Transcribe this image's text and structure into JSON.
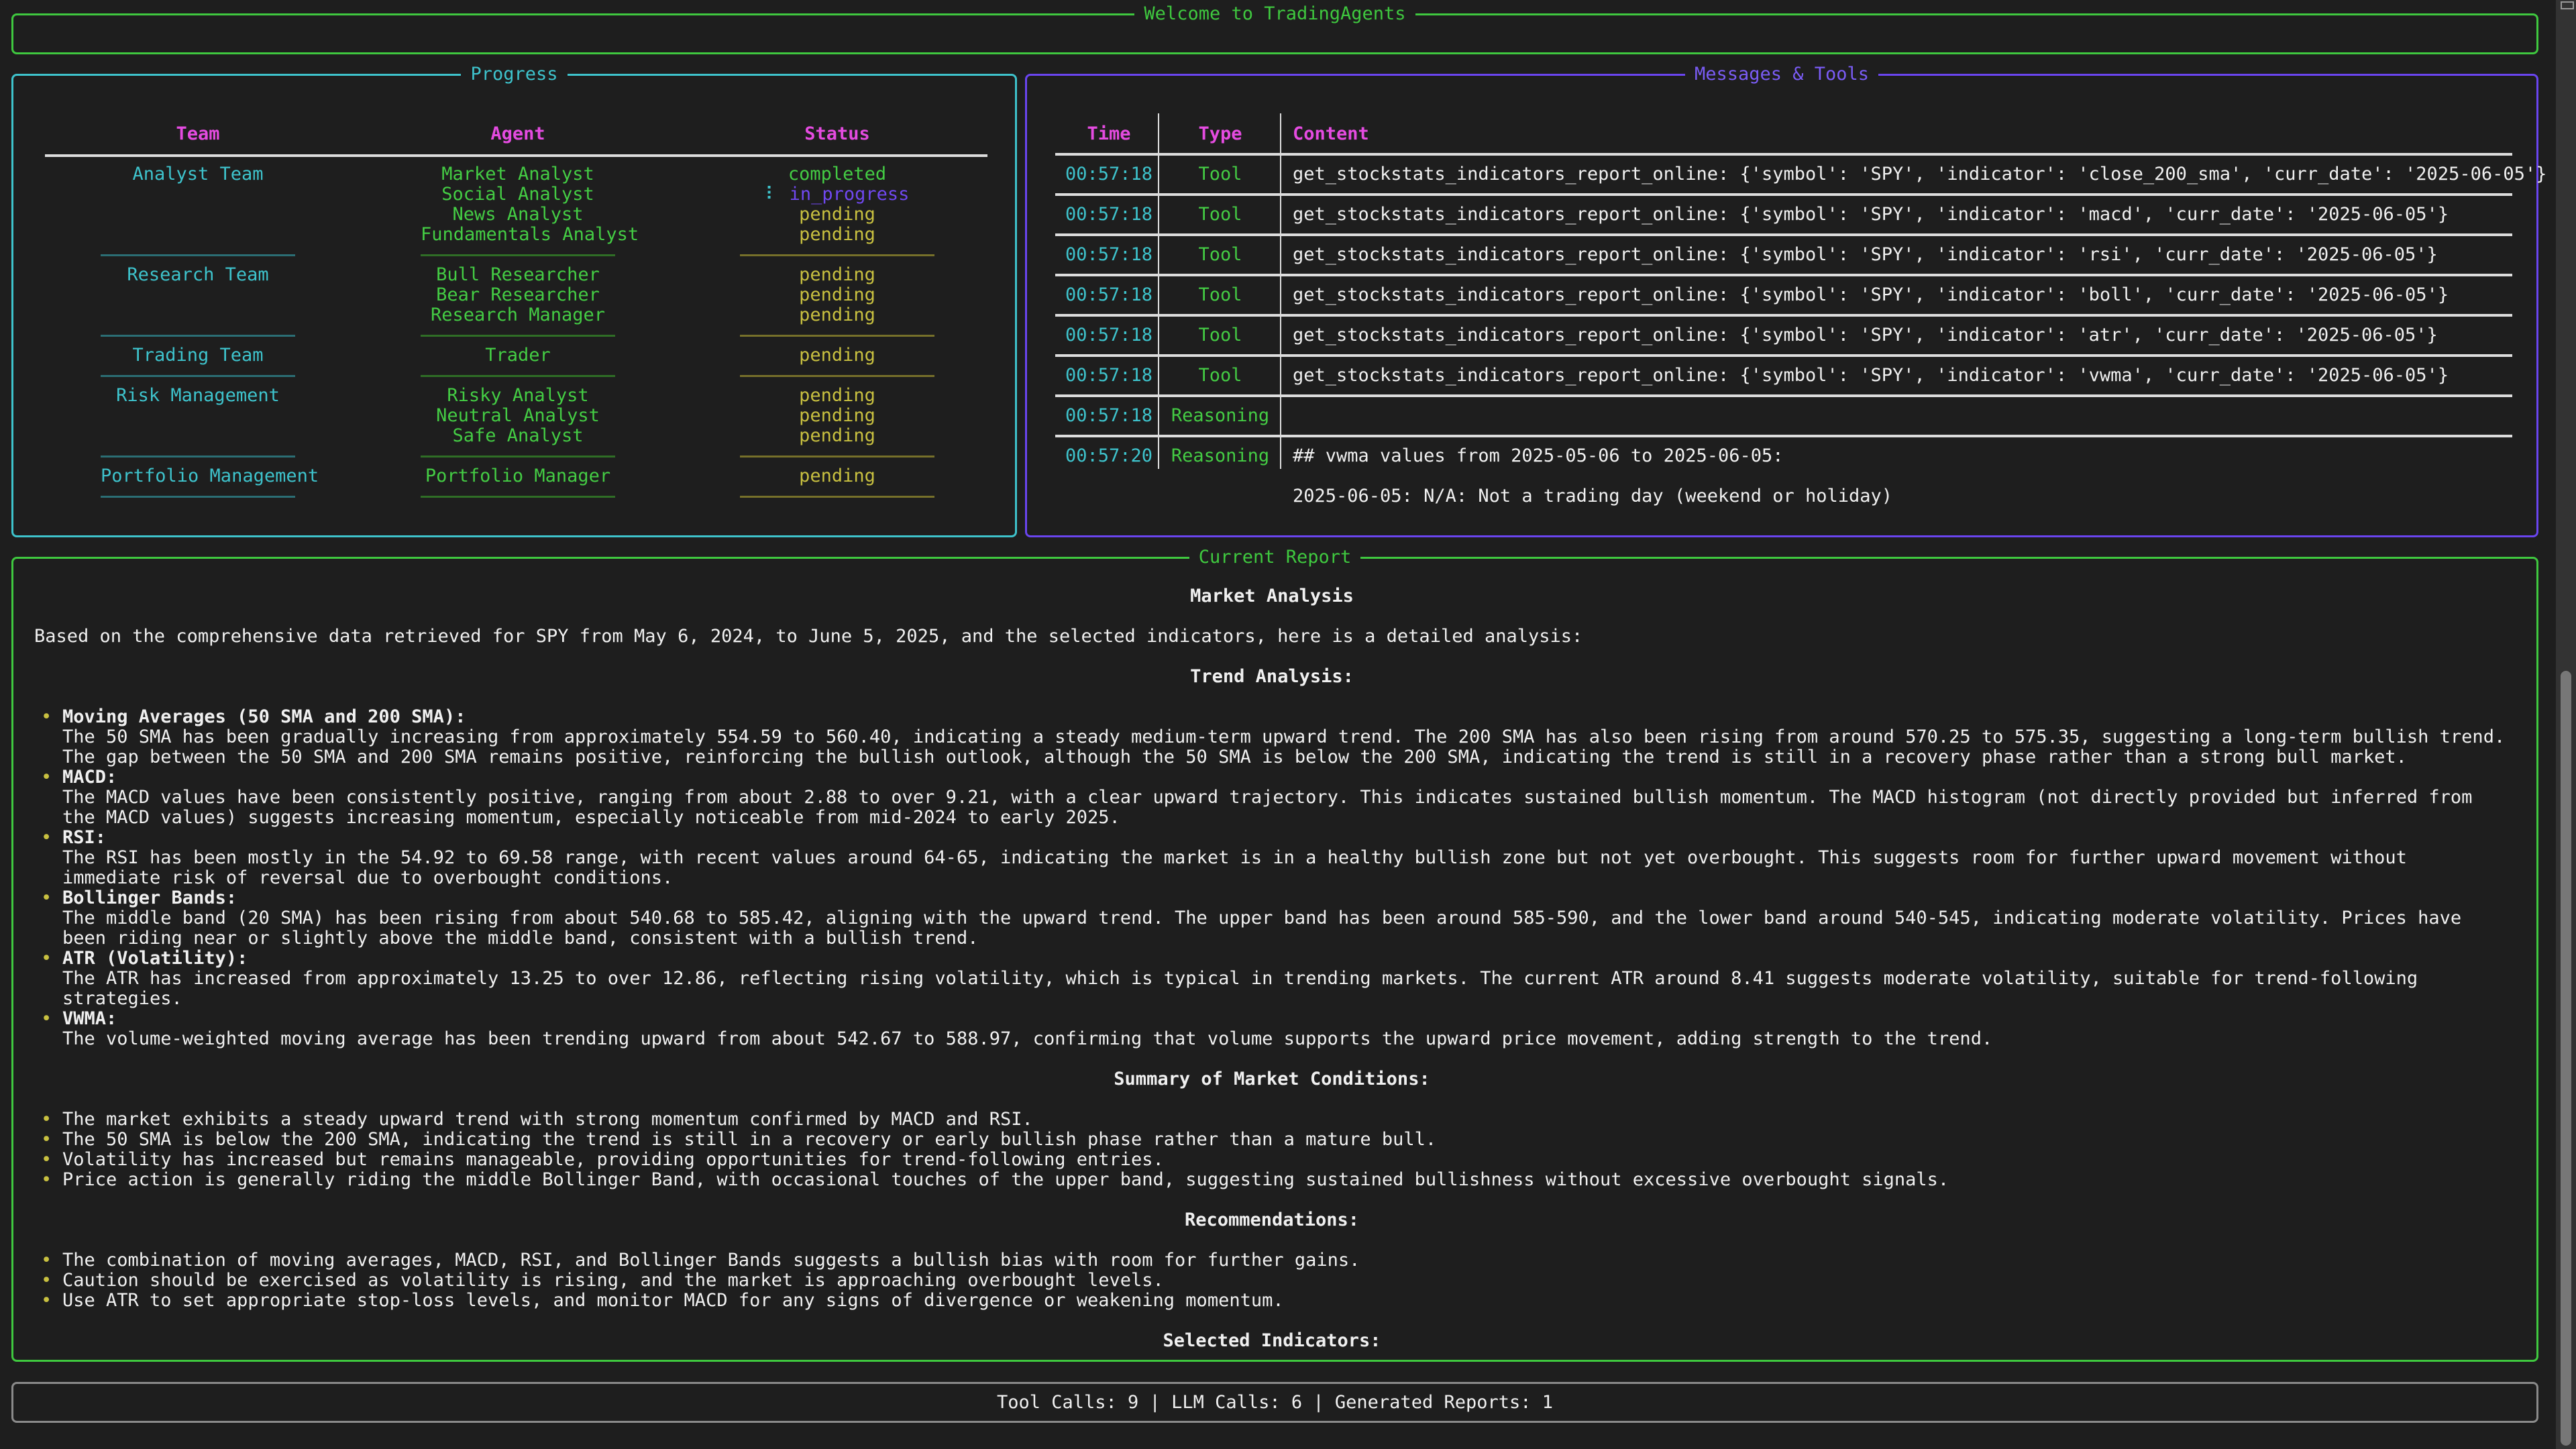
{
  "welcome": {
    "title": "Welcome to TradingAgents"
  },
  "progress": {
    "title": "Progress",
    "headers": {
      "team": "Team",
      "agent": "Agent",
      "status": "Status"
    },
    "groups": [
      {
        "team": "Analyst Team",
        "agents": [
          {
            "name": "Market Analyst",
            "status": "completed"
          },
          {
            "name": "Social Analyst",
            "status": "in_progress",
            "spinner": "⠇"
          },
          {
            "name": "News Analyst",
            "status": "pending"
          },
          {
            "name": "Fundamentals Analyst",
            "status": "pending"
          }
        ]
      },
      {
        "team": "Research Team",
        "agents": [
          {
            "name": "Bull Researcher",
            "status": "pending"
          },
          {
            "name": "Bear Researcher",
            "status": "pending"
          },
          {
            "name": "Research Manager",
            "status": "pending"
          }
        ]
      },
      {
        "team": "Trading Team",
        "agents": [
          {
            "name": "Trader",
            "status": "pending"
          }
        ]
      },
      {
        "team": "Risk Management",
        "agents": [
          {
            "name": "Risky Analyst",
            "status": "pending"
          },
          {
            "name": "Neutral Analyst",
            "status": "pending"
          },
          {
            "name": "Safe Analyst",
            "status": "pending"
          }
        ]
      },
      {
        "team": "Portfolio Management",
        "agents": [
          {
            "name": "Portfolio Manager",
            "status": "pending"
          }
        ]
      }
    ]
  },
  "messages": {
    "title": "Messages & Tools",
    "headers": {
      "time": "Time",
      "type": "Type",
      "content": "Content"
    },
    "rows": [
      {
        "time": "00:57:18",
        "type": "Tool",
        "content": [
          "get_stockstats_indicators_report_online: {'symbol': 'SPY', 'indicator': 'close_200_sma', 'curr_date': '2025-06-05'}"
        ]
      },
      {
        "time": "00:57:18",
        "type": "Tool",
        "content": [
          "get_stockstats_indicators_report_online: {'symbol': 'SPY', 'indicator': 'macd', 'curr_date': '2025-06-05'}"
        ]
      },
      {
        "time": "00:57:18",
        "type": "Tool",
        "content": [
          "get_stockstats_indicators_report_online: {'symbol': 'SPY', 'indicator': 'rsi', 'curr_date': '2025-06-05'}"
        ]
      },
      {
        "time": "00:57:18",
        "type": "Tool",
        "content": [
          "get_stockstats_indicators_report_online: {'symbol': 'SPY', 'indicator': 'boll', 'curr_date': '2025-06-05'}"
        ]
      },
      {
        "time": "00:57:18",
        "type": "Tool",
        "content": [
          "get_stockstats_indicators_report_online: {'symbol': 'SPY', 'indicator': 'atr', 'curr_date': '2025-06-05'}"
        ]
      },
      {
        "time": "00:57:18",
        "type": "Tool",
        "content": [
          "get_stockstats_indicators_report_online: {'symbol': 'SPY', 'indicator': 'vwma', 'curr_date': '2025-06-05'}"
        ]
      },
      {
        "time": "00:57:18",
        "type": "Reasoning",
        "content": [
          ""
        ]
      },
      {
        "time": "00:57:20",
        "type": "Reasoning",
        "content": [
          "## vwma values from 2025-05-06 to 2025-06-05:",
          "",
          "2025-06-05: N/A: Not a trading day (weekend or holiday)"
        ]
      }
    ]
  },
  "report": {
    "title": "Current Report",
    "blocks": [
      {
        "kind": "heading",
        "text": "Market Analysis"
      },
      {
        "kind": "blank"
      },
      {
        "kind": "para",
        "text": "Based on the comprehensive data retrieved for SPY from May 6, 2024, to June 5, 2025, and the selected indicators, here is a detailed analysis:"
      },
      {
        "kind": "blank"
      },
      {
        "kind": "heading",
        "text": "Trend Analysis:"
      },
      {
        "kind": "blank"
      },
      {
        "kind": "item",
        "label": "Moving Averages (50 SMA and 200 SMA):",
        "text": "The 50 SMA has been gradually increasing from approximately 554.59 to 560.40, indicating a steady medium-term upward trend. The 200 SMA has also been rising from around 570.25 to 575.35, suggesting a long-term bullish trend. The gap between the 50 SMA and 200 SMA remains positive, reinforcing the bullish outlook, although the 50 SMA is below the 200 SMA, indicating the trend is still in a recovery phase rather than a strong bull market."
      },
      {
        "kind": "item",
        "label": "MACD:",
        "text": "The MACD values have been consistently positive, ranging from about 2.88 to over 9.21, with a clear upward trajectory. This indicates sustained bullish momentum. The MACD histogram (not directly provided but inferred from the MACD values) suggests increasing momentum, especially noticeable from mid-2024 to early 2025."
      },
      {
        "kind": "item",
        "label": "RSI:",
        "text": "The RSI has been mostly in the 54.92 to 69.58 range, with recent values around 64-65, indicating the market is in a healthy bullish zone but not yet overbought. This suggests room for further upward movement without immediate risk of reversal due to overbought conditions."
      },
      {
        "kind": "item",
        "label": "Bollinger Bands:",
        "text": "The middle band (20 SMA) has been rising from about 540.68 to 585.42, aligning with the upward trend. The upper band has been around 585-590, and the lower band around 540-545, indicating moderate volatility. Prices have been riding near or slightly above the middle band, consistent with a bullish trend."
      },
      {
        "kind": "item",
        "label": "ATR (Volatility):",
        "text": "The ATR has increased from approximately 13.25 to over 12.86, reflecting rising volatility, which is typical in trending markets. The current ATR around 8.41 suggests moderate volatility, suitable for trend-following strategies."
      },
      {
        "kind": "item",
        "label": "VWMA:",
        "text": "The volume-weighted moving average has been trending upward from about 542.67 to 588.97, confirming that volume supports the upward price movement, adding strength to the trend."
      },
      {
        "kind": "blank"
      },
      {
        "kind": "heading",
        "text": "Summary of Market Conditions:"
      },
      {
        "kind": "blank"
      },
      {
        "kind": "bullet",
        "text": "The market exhibits a steady upward trend with strong momentum confirmed by MACD and RSI."
      },
      {
        "kind": "bullet",
        "text": "The 50 SMA is below the 200 SMA, indicating the trend is still in a recovery or early bullish phase rather than a mature bull."
      },
      {
        "kind": "bullet",
        "text": "Volatility has increased but remains manageable, providing opportunities for trend-following entries."
      },
      {
        "kind": "bullet",
        "text": "Price action is generally riding the middle Bollinger Band, with occasional touches of the upper band, suggesting sustained bullishness without excessive overbought signals."
      },
      {
        "kind": "blank"
      },
      {
        "kind": "heading",
        "text": "Recommendations:"
      },
      {
        "kind": "blank"
      },
      {
        "kind": "bullet",
        "text": "The combination of moving averages, MACD, RSI, and Bollinger Bands suggests a bullish bias with room for further gains."
      },
      {
        "kind": "bullet",
        "text": "Caution should be exercised as volatility is rising, and the market is approaching overbought levels."
      },
      {
        "kind": "bullet",
        "text": "Use ATR to set appropriate stop-loss levels, and monitor MACD for any signs of divergence or weakening momentum."
      },
      {
        "kind": "blank"
      },
      {
        "kind": "heading",
        "text": "Selected Indicators:"
      }
    ]
  },
  "footer": {
    "stats": "Tool Calls: 9 | LLM Calls: 6 | Generated Reports: 1"
  },
  "colors": {
    "background": "#1e1e1e",
    "welcome_border": "#3fc83f",
    "progress_border": "#3ec3cc",
    "messages_border": "#6a45f0",
    "header": "#e44be0",
    "team": "#3ec3cc",
    "agent": "#44cc44",
    "completed": "#44cc44",
    "in_progress": "#7048f0",
    "pending": "#c8c040"
  }
}
